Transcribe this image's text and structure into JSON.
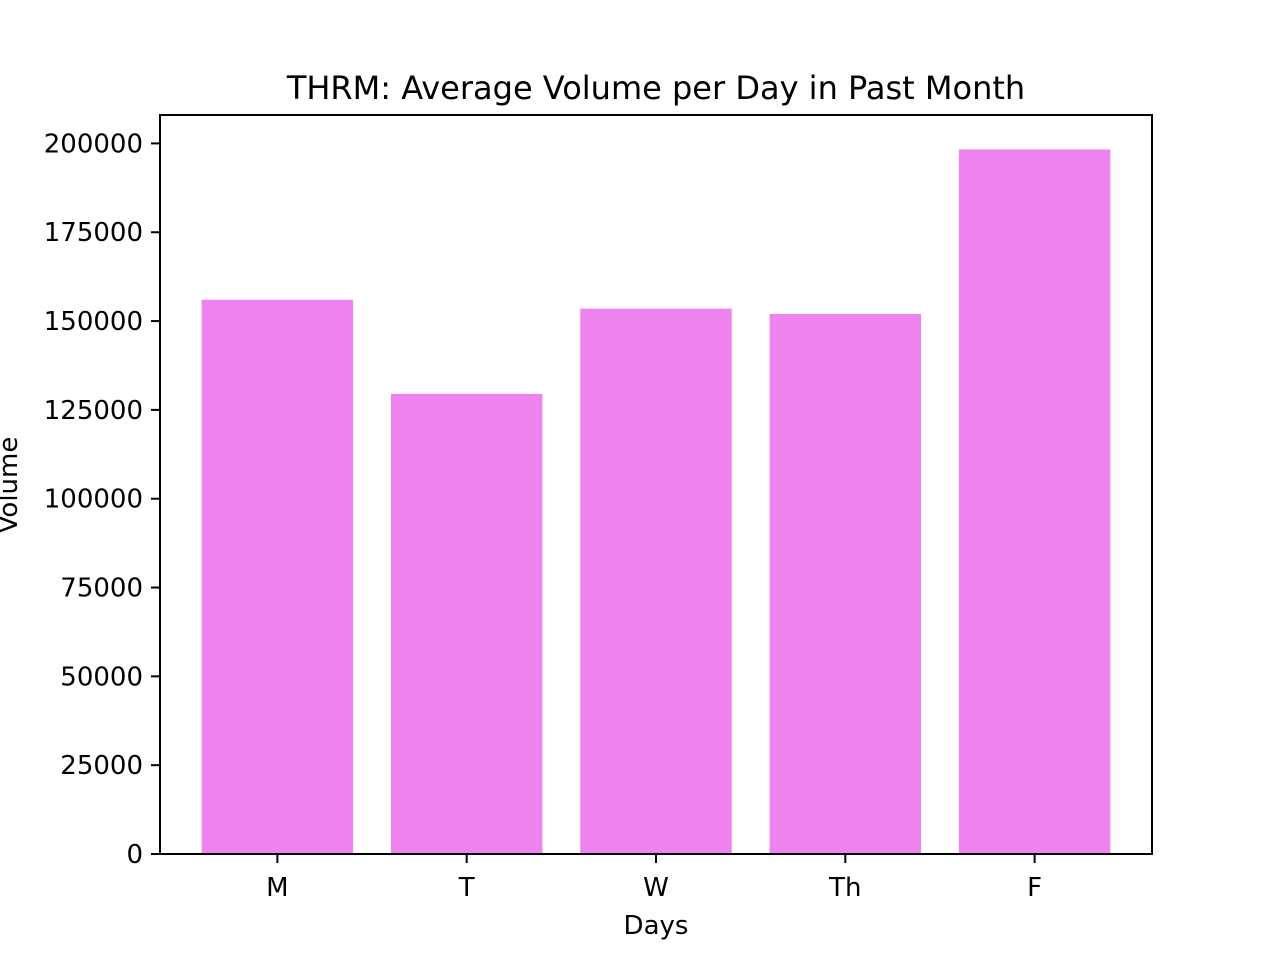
{
  "chart_data": {
    "type": "bar",
    "title": "THRM: Average Volume per Day in Past Month",
    "xlabel": "Days",
    "ylabel": "Volume",
    "categories": [
      "M",
      "T",
      "W",
      "Th",
      "F"
    ],
    "values": [
      156000,
      129500,
      153500,
      152000,
      198300
    ],
    "ylim": [
      0,
      208000
    ],
    "yticks": [
      0,
      25000,
      50000,
      75000,
      100000,
      125000,
      150000,
      175000,
      200000
    ],
    "bar_color": "#ee82ee",
    "grid": false,
    "legend": "none"
  }
}
